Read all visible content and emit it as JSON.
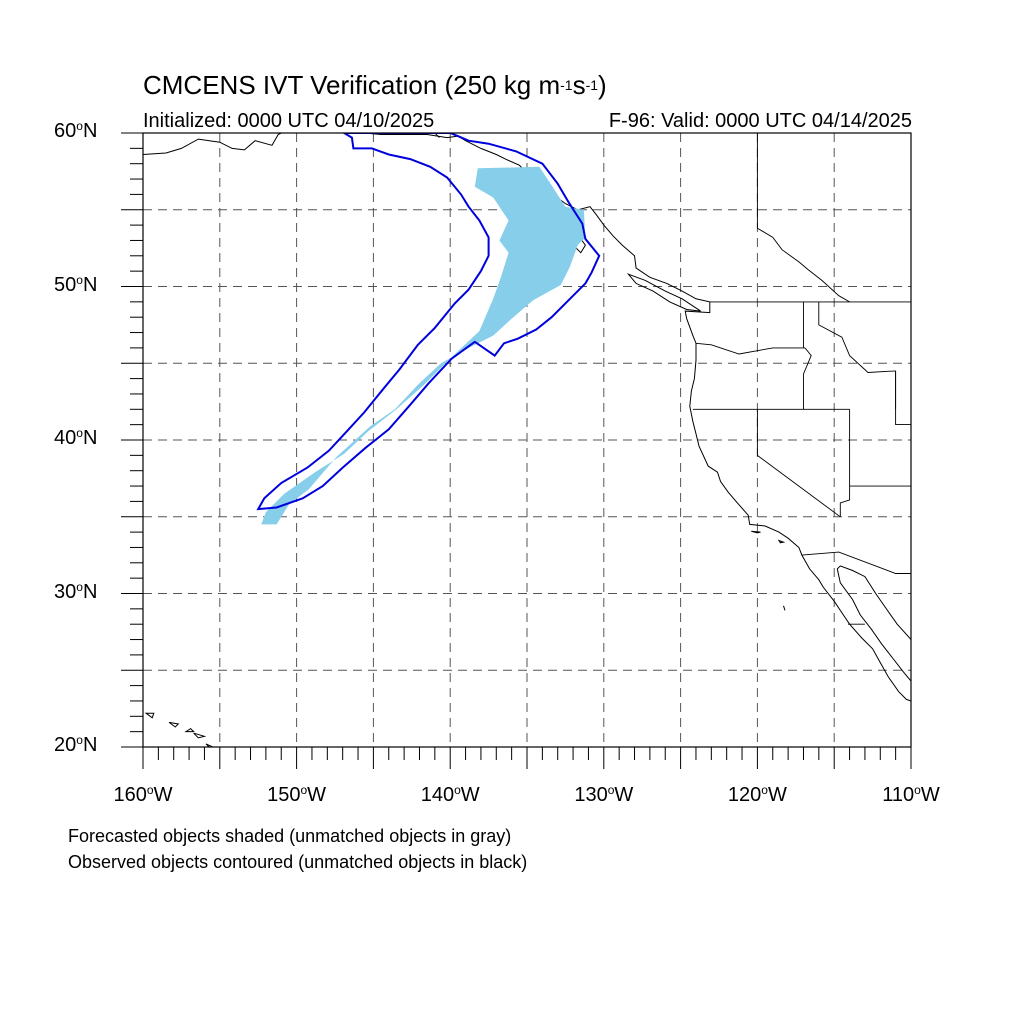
{
  "figure": {
    "title_text": "CMCENS IVT Verification (250 kg m",
    "title_sup1": "-1",
    "title_mid": "s",
    "title_sup2": "-1",
    "title_end": ")",
    "initialized": "Initialized: 0000 UTC 04/10/2025",
    "valid": "F-96: Valid: 0000 UTC 04/14/2025",
    "note_forecast": "Forecasted objects shaded (unmatched objects in gray)",
    "note_observed": "Observed objects contoured (unmatched objects in black)"
  },
  "axes": {
    "lat_labels": [
      {
        "lat": 60,
        "text": "60",
        "hemi": "N"
      },
      {
        "lat": 50,
        "text": "50",
        "hemi": "N"
      },
      {
        "lat": 40,
        "text": "40",
        "hemi": "N"
      },
      {
        "lat": 30,
        "text": "30",
        "hemi": "N"
      },
      {
        "lat": 20,
        "text": "20",
        "hemi": "N"
      }
    ],
    "lon_labels": [
      {
        "lon": -160,
        "text": "160",
        "hemi": "W"
      },
      {
        "lon": -150,
        "text": "150",
        "hemi": "W"
      },
      {
        "lon": -140,
        "text": "140",
        "hemi": "W"
      },
      {
        "lon": -130,
        "text": "130",
        "hemi": "W"
      },
      {
        "lon": -120,
        "text": "120",
        "hemi": "W"
      },
      {
        "lon": -110,
        "text": "110",
        "hemi": "W"
      }
    ],
    "lon_range": [
      -160,
      -110
    ],
    "lat_range": [
      20,
      60
    ],
    "gridline_spacing_deg": 5
  },
  "colors": {
    "forecast_fill": "#87ceeb",
    "observed_contour": "#0000dd",
    "coastline": "#000000",
    "grid": "#555555"
  },
  "objects": {
    "forecast_shaded": [
      [
        -138.2,
        57.7
      ],
      [
        -134.2,
        57.8
      ],
      [
        -133.4,
        56.6
      ],
      [
        -132.5,
        55.2
      ],
      [
        -131.3,
        55.0
      ],
      [
        -131.2,
        53.2
      ],
      [
        -131.7,
        52.7
      ],
      [
        -132.2,
        51.3
      ],
      [
        -132.8,
        50.1
      ],
      [
        -134.6,
        49.1
      ],
      [
        -136.0,
        47.9
      ],
      [
        -137.2,
        46.8
      ],
      [
        -138.8,
        46.0
      ],
      [
        -140.6,
        45.0
      ],
      [
        -142.1,
        43.6
      ],
      [
        -143.6,
        42.0
      ],
      [
        -145.2,
        40.9
      ],
      [
        -147.4,
        38.9
      ],
      [
        -149.2,
        36.8
      ],
      [
        -150.5,
        35.8
      ],
      [
        -151.3,
        34.5
      ],
      [
        -152.3,
        34.5
      ],
      [
        -152.0,
        35.3
      ],
      [
        -150.8,
        36.5
      ],
      [
        -148.8,
        37.9
      ],
      [
        -146.9,
        39.1
      ],
      [
        -145.3,
        40.6
      ],
      [
        -143.5,
        42.0
      ],
      [
        -141.7,
        43.6
      ],
      [
        -139.9,
        45.4
      ],
      [
        -138.1,
        47.1
      ],
      [
        -137.2,
        49.2
      ],
      [
        -136.7,
        50.6
      ],
      [
        -136.2,
        52.2
      ],
      [
        -136.8,
        53.0
      ],
      [
        -136.2,
        54.3
      ],
      [
        -137.2,
        55.8
      ],
      [
        -138.4,
        56.5
      ]
    ],
    "observed_contour": [
      [
        -146.9,
        60.0
      ],
      [
        -146.4,
        59.7
      ],
      [
        -146.3,
        59.0
      ],
      [
        -145.1,
        59.0
      ],
      [
        -144.0,
        58.6
      ],
      [
        -142.6,
        58.3
      ],
      [
        -141.3,
        57.8
      ],
      [
        -140.2,
        57.1
      ],
      [
        -139.3,
        56.0
      ],
      [
        -138.8,
        55.2
      ],
      [
        -138.1,
        54.3
      ],
      [
        -137.5,
        53.2
      ],
      [
        -137.5,
        52.0
      ],
      [
        -138.0,
        51.0
      ],
      [
        -138.8,
        49.8
      ],
      [
        -139.7,
        48.9
      ],
      [
        -141.0,
        47.3
      ],
      [
        -142.1,
        46.2
      ],
      [
        -143.3,
        44.6
      ],
      [
        -144.3,
        43.4
      ],
      [
        -145.6,
        41.8
      ],
      [
        -146.7,
        40.6
      ],
      [
        -147.9,
        39.3
      ],
      [
        -149.3,
        38.2
      ],
      [
        -151.0,
        37.2
      ],
      [
        -152.1,
        36.2
      ],
      [
        -152.5,
        35.5
      ],
      [
        -151.3,
        35.6
      ],
      [
        -149.6,
        36.2
      ],
      [
        -148.3,
        37.0
      ],
      [
        -147.0,
        38.2
      ],
      [
        -145.5,
        39.5
      ],
      [
        -144.0,
        40.7
      ],
      [
        -142.6,
        42.3
      ],
      [
        -141.4,
        43.7
      ],
      [
        -139.9,
        45.3
      ],
      [
        -138.4,
        46.4
      ],
      [
        -137.1,
        45.5
      ],
      [
        -136.5,
        46.3
      ],
      [
        -135.6,
        46.6
      ],
      [
        -134.4,
        47.2
      ],
      [
        -133.4,
        48.0
      ],
      [
        -132.2,
        49.2
      ],
      [
        -131.2,
        50.2
      ],
      [
        -130.8,
        50.9
      ],
      [
        -130.3,
        52.0
      ],
      [
        -131.2,
        53.1
      ],
      [
        -131.4,
        54.1
      ],
      [
        -132.3,
        55.5
      ],
      [
        -133.0,
        56.7
      ],
      [
        -134.0,
        58.0
      ],
      [
        -135.7,
        58.8
      ],
      [
        -137.5,
        59.3
      ],
      [
        -138.8,
        59.5
      ],
      [
        -139.5,
        59.8
      ],
      [
        -140.0,
        60.0
      ]
    ]
  },
  "coastlines": {
    "north_america": [
      [
        -160,
        58.6
      ],
      [
        -158.5,
        58.7
      ],
      [
        -157.5,
        59.0
      ],
      [
        -156.4,
        59.6
      ],
      [
        -155.0,
        59.4
      ],
      [
        -154.2,
        59.0
      ],
      [
        -153.4,
        58.9
      ],
      [
        -152.7,
        59.5
      ],
      [
        -151.6,
        59.2
      ],
      [
        -151.2,
        59.9
      ],
      [
        -151.0,
        60.0
      ]
    ],
    "gulf_of_alaska": [
      [
        -146.5,
        60.0
      ],
      [
        -145.6,
        60.0
      ],
      [
        -144.5,
        59.9
      ],
      [
        -143.2,
        59.9
      ],
      [
        -141.5,
        59.9
      ],
      [
        -140.2,
        59.7
      ],
      [
        -139.5,
        59.8
      ],
      [
        -139.0,
        59.5
      ],
      [
        -138.0,
        59.0
      ],
      [
        -137.0,
        58.6
      ],
      [
        -136.4,
        58.3
      ],
      [
        -135.5,
        57.9
      ],
      [
        -135.0,
        57.4
      ],
      [
        -134.3,
        56.6
      ],
      [
        -133.3,
        56.0
      ],
      [
        -132.5,
        55.4
      ],
      [
        -131.7,
        55.0
      ],
      [
        -130.9,
        55.2
      ],
      [
        -130.5,
        54.7
      ],
      [
        -130.0,
        54.0
      ],
      [
        -129.4,
        53.3
      ],
      [
        -128.8,
        52.7
      ],
      [
        -128.0,
        52.0
      ],
      [
        -127.9,
        51.2
      ],
      [
        -127.0,
        50.6
      ],
      [
        -125.9,
        50.2
      ],
      [
        -124.9,
        49.7
      ],
      [
        -124.0,
        49.2
      ],
      [
        -123.1,
        49.0
      ],
      [
        -123.1,
        48.3
      ],
      [
        -124.7,
        48.4
      ],
      [
        -124.6,
        47.9
      ],
      [
        -124.2,
        46.8
      ],
      [
        -124.0,
        46.3
      ],
      [
        -124.0,
        45.2
      ],
      [
        -124.1,
        44.0
      ],
      [
        -124.3,
        43.2
      ],
      [
        -124.4,
        42.2
      ],
      [
        -124.2,
        41.2
      ],
      [
        -124.0,
        40.4
      ],
      [
        -123.8,
        39.6
      ],
      [
        -123.2,
        38.3
      ],
      [
        -122.6,
        37.9
      ],
      [
        -122.4,
        37.3
      ],
      [
        -121.9,
        36.6
      ],
      [
        -121.3,
        35.9
      ],
      [
        -120.6,
        35.1
      ],
      [
        -120.5,
        34.5
      ],
      [
        -119.5,
        34.4
      ],
      [
        -118.6,
        34.0
      ],
      [
        -118.0,
        33.6
      ],
      [
        -117.3,
        33.0
      ],
      [
        -117.1,
        32.5
      ],
      [
        -116.6,
        31.6
      ],
      [
        -116.0,
        30.9
      ],
      [
        -115.7,
        30.4
      ],
      [
        -115.0,
        29.5
      ],
      [
        -114.4,
        28.6
      ],
      [
        -114.0,
        28.0
      ],
      [
        -113.2,
        27.1
      ],
      [
        -112.5,
        26.4
      ],
      [
        -112.0,
        25.5
      ],
      [
        -111.5,
        24.6
      ],
      [
        -110.8,
        23.6
      ],
      [
        -110.3,
        23.1
      ],
      [
        -110.0,
        23.0
      ]
    ],
    "baja_east": [
      [
        -110,
        24.3
      ],
      [
        -110.5,
        24.9
      ],
      [
        -111.2,
        25.8
      ],
      [
        -111.9,
        26.7
      ],
      [
        -112.6,
        27.7
      ],
      [
        -113.3,
        28.6
      ],
      [
        -113.8,
        29.6
      ],
      [
        -114.6,
        30.7
      ],
      [
        -114.8,
        31.6
      ],
      [
        -114.6,
        31.8
      ],
      [
        -113.8,
        31.5
      ],
      [
        -113.0,
        31.1
      ],
      [
        -112.3,
        30.0
      ],
      [
        -111.6,
        29.0
      ],
      [
        -110.9,
        28.0
      ],
      [
        -110.0,
        27.0
      ]
    ],
    "haida_gwaii": [
      [
        -132.9,
        54.2
      ],
      [
        -132.3,
        54.1
      ],
      [
        -131.8,
        53.5
      ],
      [
        -131.2,
        52.7
      ],
      [
        -131.5,
        52.2
      ],
      [
        -132.3,
        53.0
      ],
      [
        -132.9,
        53.6
      ],
      [
        -132.9,
        54.2
      ]
    ],
    "vancouver_island": [
      [
        -128.4,
        50.8
      ],
      [
        -127.3,
        50.4
      ],
      [
        -126.0,
        49.7
      ],
      [
        -124.9,
        49.2
      ],
      [
        -123.7,
        48.4
      ],
      [
        -124.6,
        48.5
      ],
      [
        -125.7,
        49.0
      ],
      [
        -126.8,
        49.7
      ],
      [
        -127.9,
        50.2
      ],
      [
        -128.4,
        50.8
      ]
    ],
    "hawaii": [
      [
        [
          -159.8,
          22.2
        ],
        [
          -159.3,
          22.2
        ],
        [
          -159.4,
          21.9
        ],
        [
          -159.8,
          22.2
        ]
      ],
      [
        [
          -158.3,
          21.6
        ],
        [
          -157.7,
          21.5
        ],
        [
          -157.9,
          21.3
        ],
        [
          -158.3,
          21.6
        ]
      ],
      [
        [
          -156.9,
          21.2
        ],
        [
          -156.7,
          21.0
        ],
        [
          -157.2,
          21.0
        ],
        [
          -156.9,
          21.2
        ]
      ],
      [
        [
          -156.7,
          20.9
        ],
        [
          -156.0,
          20.7
        ],
        [
          -156.4,
          20.6
        ],
        [
          -156.7,
          20.9
        ]
      ],
      [
        [
          -155.9,
          20.2
        ],
        [
          -155.0,
          19.8
        ],
        [
          -155.3,
          19.6
        ],
        [
          -155.9,
          20.2
        ]
      ]
    ],
    "channel_islands": [
      [
        [
          -120.4,
          34.05
        ],
        [
          -119.8,
          34.0
        ],
        [
          -120.0,
          33.95
        ],
        [
          -120.4,
          34.05
        ]
      ],
      [
        [
          -118.6,
          33.45
        ],
        [
          -118.3,
          33.35
        ],
        [
          -118.5,
          33.3
        ],
        [
          -118.6,
          33.45
        ]
      ]
    ],
    "guadalupe": [
      [
        -118.3,
        29.2
      ],
      [
        -118.2,
        28.9
      ],
      [
        -118.3,
        29.2
      ]
    ]
  },
  "political_lines": {
    "alaska_canada": [
      [
        -141.0,
        60.0
      ],
      [
        -140.7,
        59.7
      ]
    ],
    "bc_alberta": [
      [
        -120.0,
        60.0
      ],
      [
        -120.0,
        53.8
      ],
      [
        -119.0,
        53.2
      ],
      [
        -118.4,
        52.4
      ],
      [
        -117.3,
        51.6
      ],
      [
        -116.7,
        51.1
      ],
      [
        -115.8,
        50.4
      ],
      [
        -114.7,
        49.4
      ],
      [
        -114.0,
        49.0
      ]
    ],
    "us_canada": [
      [
        -123.1,
        49.0
      ],
      [
        -110.0,
        49.0
      ]
    ],
    "wa_or": [
      [
        -124.0,
        46.3
      ],
      [
        -123.0,
        46.2
      ],
      [
        -121.2,
        45.6
      ],
      [
        -119.0,
        46.0
      ],
      [
        -116.9,
        46.0
      ]
    ],
    "wa_id": [
      [
        -117.0,
        49.0
      ],
      [
        -117.0,
        46.0
      ]
    ],
    "or_id": [
      [
        -116.9,
        46.0
      ],
      [
        -116.5,
        45.5
      ],
      [
        -117.0,
        44.3
      ],
      [
        -117.0,
        42.0
      ]
    ],
    "or_ca_nv": [
      [
        -124.2,
        42.0
      ],
      [
        -114.0,
        42.0
      ]
    ],
    "id_mt": [
      [
        -116.0,
        49.0
      ],
      [
        -116.0,
        47.5
      ],
      [
        -114.5,
        46.7
      ],
      [
        -114.0,
        45.5
      ],
      [
        -112.8,
        44.4
      ],
      [
        -111.0,
        44.5
      ]
    ],
    "id_wy": [
      [
        -111.0,
        44.5
      ],
      [
        -111.0,
        42.0
      ]
    ],
    "ut_east": [
      [
        -111.0,
        44.5
      ],
      [
        -111.0,
        41.0
      ],
      [
        -110.0,
        41.0
      ]
    ],
    "ca_nv": [
      [
        -120.0,
        42.0
      ],
      [
        -120.0,
        39.0
      ],
      [
        -114.6,
        35.0
      ]
    ],
    "nv_ut": [
      [
        -114.0,
        42.0
      ],
      [
        -114.0,
        37.0
      ]
    ],
    "nv_az": [
      [
        -114.0,
        37.0
      ],
      [
        -114.0,
        36.1
      ],
      [
        -114.6,
        35.9
      ],
      [
        -114.6,
        35.0
      ]
    ],
    "us_mexico": [
      [
        -117.1,
        32.5
      ],
      [
        -114.7,
        32.7
      ],
      [
        -111.0,
        31.3
      ],
      [
        -110.0,
        31.3
      ]
    ],
    "az_ut": [
      [
        -114.0,
        37.0
      ],
      [
        -110.0,
        37.0
      ]
    ],
    "baja_states": [
      [
        -114.1,
        28.0
      ],
      [
        -113.0,
        28.0
      ]
    ]
  }
}
